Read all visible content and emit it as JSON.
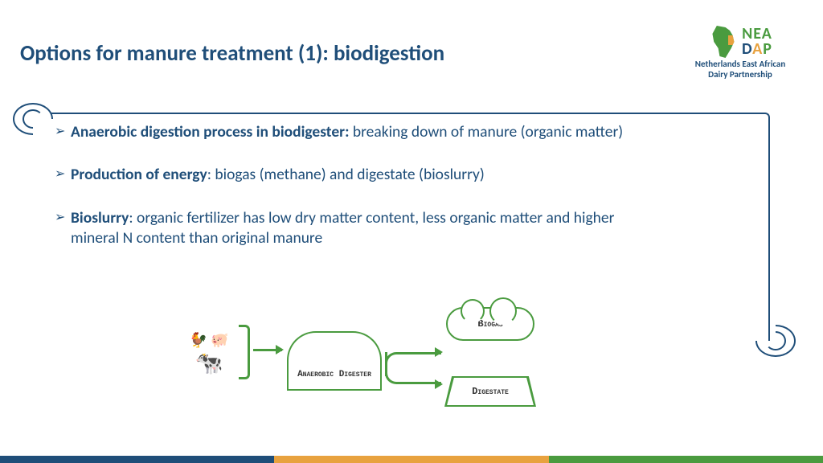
{
  "slide": {
    "title": "Options for manure treatment (1):  biodigestion",
    "text_color": "#1f4e79",
    "background_color": "#ffffff"
  },
  "logo": {
    "line1": "NEA",
    "line2_d": "D",
    "line2_a": "A",
    "line2_p": "P",
    "subtitle1": "Netherlands East African",
    "subtitle2": "Dairy Partnership",
    "green": "#4a9b3f",
    "blue": "#1f4e79",
    "orange": "#e8a23f"
  },
  "bullets": {
    "b1_bold": "Anaerobic digestion process in biodigester: ",
    "b1_rest": "breaking down of manure (organic matter)",
    "b2_bold": "Production of energy",
    "b2_rest": ": biogas (methane) and digestate (bioslurry)",
    "b3_bold": "Bioslurry",
    "b3_rest": ": organic fertilizer has low dry matter content, less organic matter and higher mineral N content than original manure"
  },
  "diagram": {
    "type": "flowchart",
    "line_color": "#4a9b3f",
    "node_digester_l1": "Anaerobic",
    "node_digester_l2": "Digester",
    "node_biogas": "Biogas",
    "node_digestate": "Digestate",
    "animals": [
      "chicken",
      "pig",
      "cow"
    ],
    "edges": [
      {
        "from": "animals",
        "to": "digester"
      },
      {
        "from": "digester",
        "to": "biogas"
      },
      {
        "from": "digester",
        "to": "digestate"
      }
    ]
  },
  "footer": {
    "colors": [
      "#1f4e79",
      "#e8a23f",
      "#4a9b3f"
    ]
  }
}
